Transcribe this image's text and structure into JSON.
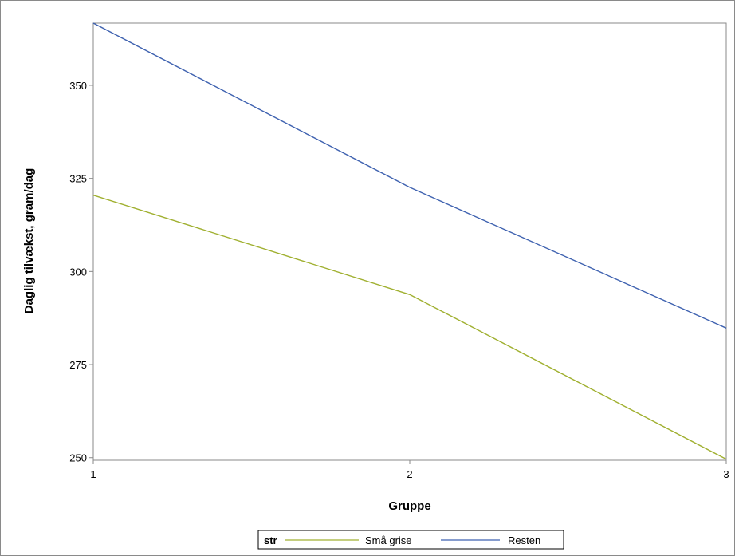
{
  "chart_data": {
    "type": "line",
    "x": [
      1,
      2,
      3
    ],
    "x_tick_labels": [
      "1",
      "2",
      "3"
    ],
    "y_tick_labels": [
      "250",
      "275",
      "300",
      "325",
      "350"
    ],
    "y_ticks": [
      250,
      275,
      300,
      325,
      350
    ],
    "xlabel": "Gruppe",
    "ylabel": "Daglig tilvækst, gram/dag",
    "xlim": [
      1,
      3
    ],
    "ylim": [
      249.3,
      366.7
    ],
    "grid": false,
    "legend": {
      "title": "str",
      "position": "bottom-center"
    },
    "series": [
      {
        "name": "Små grise",
        "color": "#a0b030",
        "values": [
          320.5,
          293.8,
          249.6
        ]
      },
      {
        "name": "Resten",
        "color": "#3f62b0",
        "values": [
          366.7,
          322.6,
          284.8
        ]
      }
    ]
  }
}
